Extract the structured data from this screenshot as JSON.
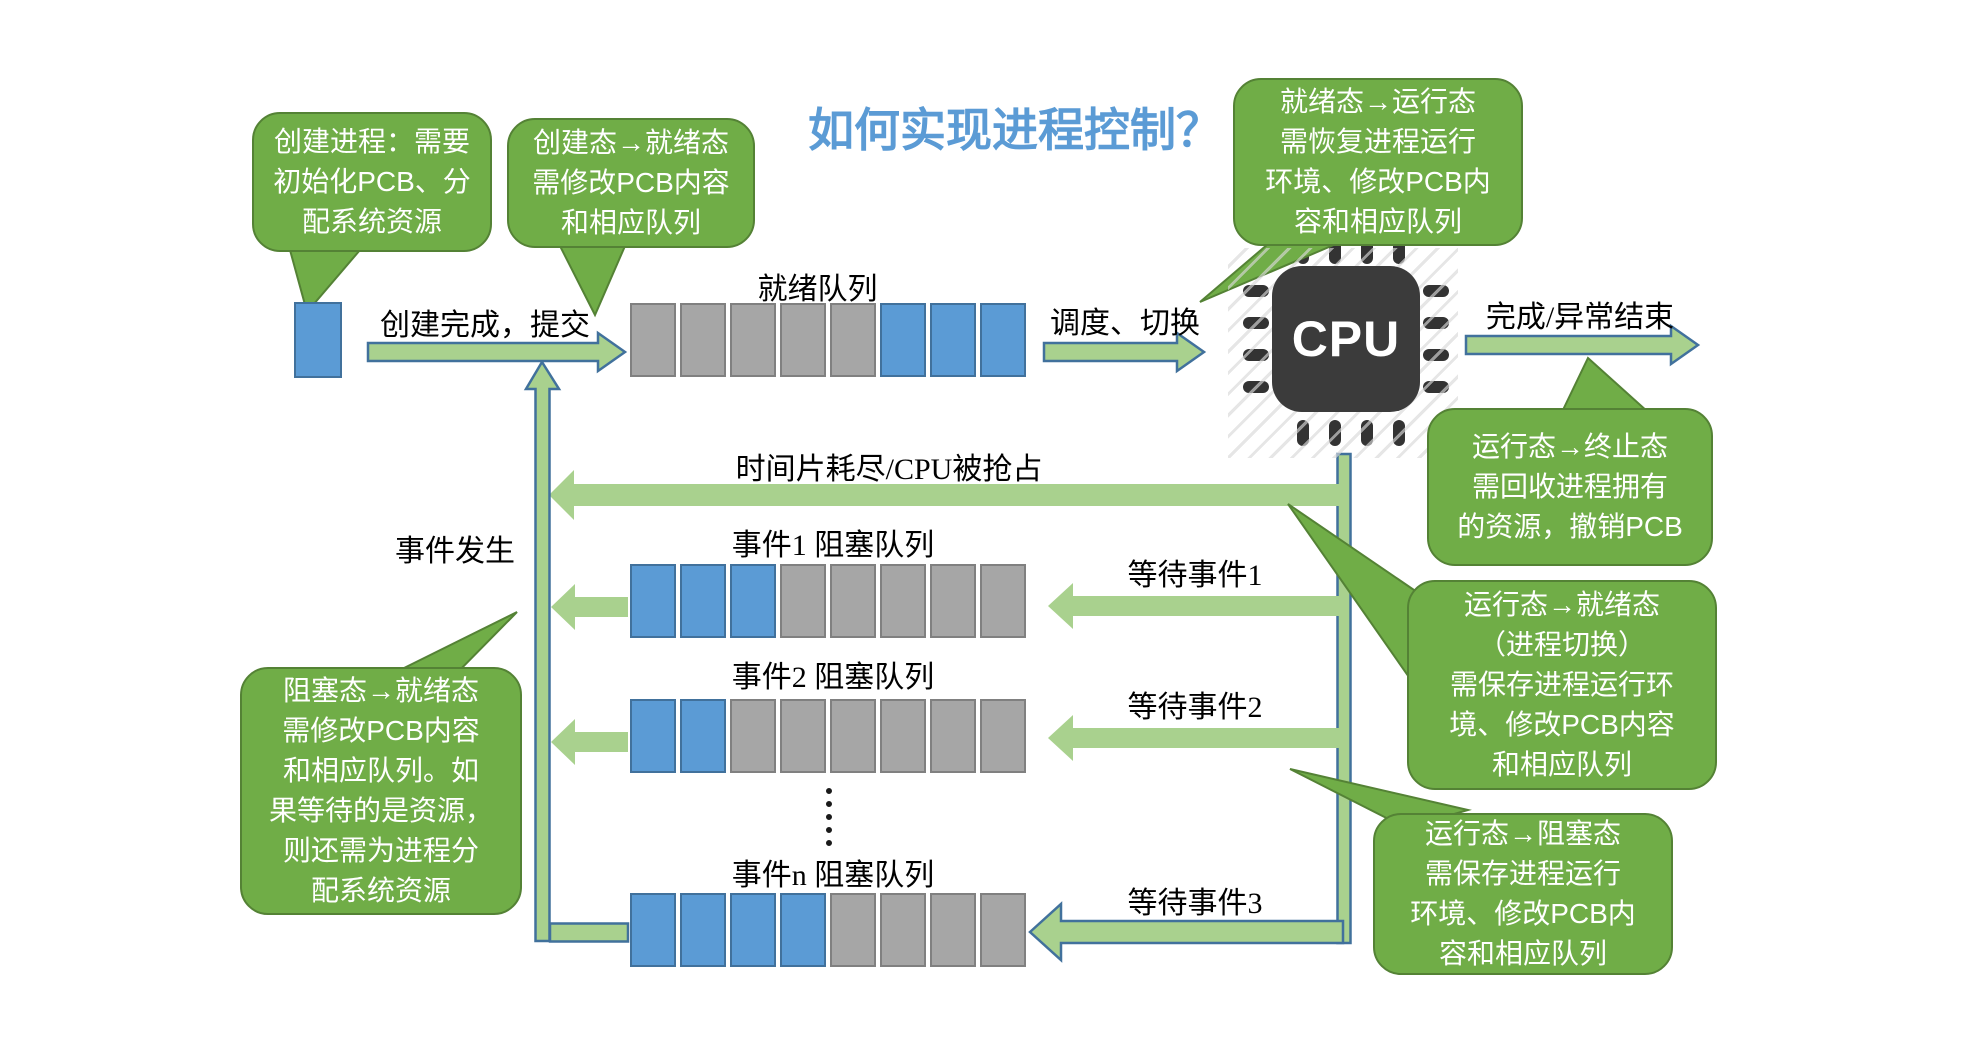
{
  "title": {
    "text": "如何实现进程控制？"
  },
  "bubbles": {
    "create_process": {
      "text": "创建进程：需要\n初始化PCB、分\n配系统资源"
    },
    "create_to_ready": {
      "text": "创建态→就绪态\n需修改PCB内容\n和相应队列"
    },
    "ready_to_running": {
      "text": "就绪态→运行态\n需恢复进程运行\n环境、修改PCB内\n容和相应队列"
    },
    "running_to_terminated": {
      "text": "运行态→终止态\n需回收进程拥有\n的资源，撤销PCB"
    },
    "blocked_to_ready": {
      "text": "阻塞态→就绪态\n需修改PCB内容\n和相应队列。如\n果等待的是资源，\n则还需为进程分\n配系统资源"
    },
    "running_to_ready": {
      "text": "运行态→就绪态\n（进程切换）\n需保存进程运行环\n境、修改PCB内容\n和相应队列"
    },
    "running_to_blocked": {
      "text": "运行态→阻塞态\n需保存进程运行\n环境、修改PCB内\n容和相应队列"
    }
  },
  "labels": {
    "create_done": "创建完成，提交",
    "ready_queue": "就绪队列",
    "dispatch": "调度、切换",
    "finish": "完成/异常结束",
    "timeslice": "时间片耗尽/CPU被抢占",
    "event_occur": "事件发生",
    "event1_queue": "事件1 阻塞队列",
    "event2_queue": "事件2 阻塞队列",
    "eventn_queue": "事件n 阻塞队列",
    "wait_event1": "等待事件1",
    "wait_event2": "等待事件2",
    "wait_event3": "等待事件3",
    "cpu": "CPU"
  },
  "queues": {
    "ready": {
      "label": "就绪队列",
      "cells": [
        "gray",
        "gray",
        "gray",
        "gray",
        "gray",
        "blue",
        "blue",
        "blue"
      ]
    },
    "event1": {
      "label": "事件1 阻塞队列",
      "cells": [
        "blue",
        "blue",
        "blue",
        "gray",
        "gray",
        "gray",
        "gray",
        "gray"
      ]
    },
    "event2": {
      "label": "事件2 阻塞队列",
      "cells": [
        "blue",
        "blue",
        "gray",
        "gray",
        "gray",
        "gray",
        "gray",
        "gray"
      ]
    },
    "eventn": {
      "label": "事件n 阻塞队列",
      "cells": [
        "blue",
        "blue",
        "blue",
        "blue",
        "gray",
        "gray",
        "gray",
        "gray"
      ]
    }
  },
  "colors": {
    "bubble_green": "#70AD47",
    "bubble_border": "#548235",
    "arrow_light_green": "#A9D18E",
    "arrow_outline_blue": "#41719C",
    "process_blue": "#5B9BD5",
    "queue_gray": "#A6A6A6",
    "title_blue": "#5B9BD5",
    "cpu_dark": "#3B3B3B"
  }
}
